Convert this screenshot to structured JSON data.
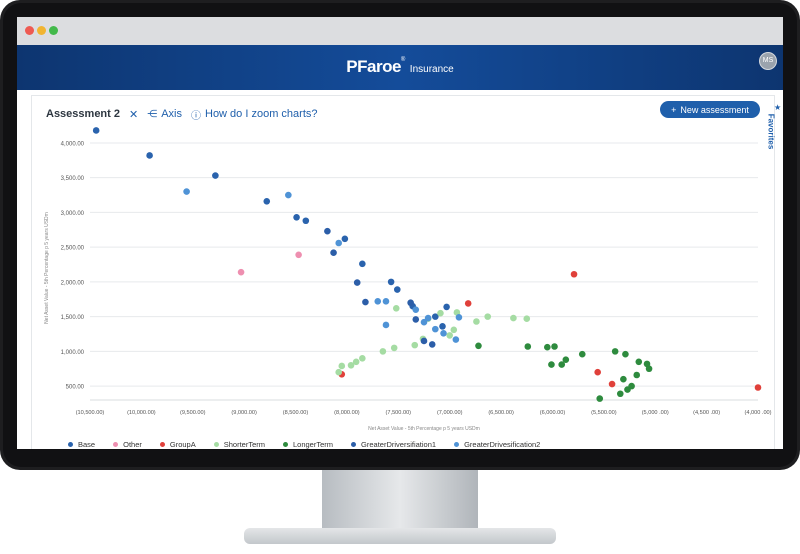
{
  "app": {
    "brand": "PFaroe",
    "brand_reg": "®",
    "brand_sub": "Insurance",
    "user_initials": "MS"
  },
  "toolbar": {
    "title": "Assessment 2",
    "close": "✕",
    "axis_label": "Axis",
    "help_label": "How do I zoom charts?",
    "new_button": "New assessment"
  },
  "sidebar": {
    "favorites_label": "Favorites"
  },
  "colors": {
    "accent": "#1f5fab",
    "header": "#144c9a"
  },
  "chart_data": {
    "type": "scatter",
    "xlabel": "Net Asset Value - 5th Percentage p 5 years USDm",
    "ylabel": "Net Asset Value - 5th Percentage p 5 years USDm",
    "xlim": [
      -10500,
      -4000
    ],
    "ylim": [
      300,
      4100
    ],
    "x_ticks": [
      -10500,
      -10000,
      -9500,
      -9000,
      -8500,
      -8000,
      -7500,
      -7000,
      -6500,
      -6000,
      -5500,
      -5000,
      -4500,
      -4000
    ],
    "x_tick_labels": [
      "(10,500.00)",
      "(10,000.00)",
      "(9,500.00)",
      "(9,000.00)",
      "(8,500.00)",
      "(8,000.00)",
      "(7,500.00)",
      "(7,000.00)",
      "(6,500.00)",
      "(6,000.00)",
      "(5,500.00)",
      "(5,000 .00)",
      "(4,500 .00)",
      "(4,000 .00)"
    ],
    "y_ticks": [
      500,
      1000,
      1500,
      2000,
      2500,
      3000,
      3500,
      4000
    ],
    "y_tick_labels": [
      "500.00",
      "1,000.00",
      "1,500.00",
      "2,000.00",
      "2,500.00",
      "3,000.00",
      "3,500.00",
      "4,000.00"
    ],
    "grid": true,
    "legend_position": "bottom",
    "series": [
      {
        "name": "Base",
        "color": "#2a63ad",
        "points": [
          [
            -10440,
            4180
          ],
          [
            -9920,
            3820
          ],
          [
            -9280,
            3530
          ],
          [
            -8780,
            3160
          ],
          [
            -8490,
            2930
          ],
          [
            -8400,
            2880
          ],
          [
            -8020,
            2620
          ],
          [
            -7850,
            2260
          ],
          [
            -7570,
            2000
          ],
          [
            -7510,
            1890
          ],
          [
            -7360,
            1650
          ],
          [
            -7140,
            1500
          ],
          [
            -7070,
            1360
          ],
          [
            -7030,
            1640
          ]
        ]
      },
      {
        "name": "Other",
        "color": "#ee8fb0",
        "points": [
          [
            -9030,
            2140
          ],
          [
            -8470,
            2390
          ]
        ]
      },
      {
        "name": "GroupA",
        "color": "#e0403a",
        "points": [
          [
            -8050,
            670
          ],
          [
            -6820,
            1690
          ],
          [
            -5790,
            2110
          ],
          [
            -5560,
            700
          ],
          [
            -5420,
            530
          ],
          [
            -4000,
            480
          ]
        ]
      },
      {
        "name": "ShorterTerm",
        "color": "#a5dca3",
        "points": [
          [
            -8080,
            700
          ],
          [
            -8050,
            790
          ],
          [
            -7960,
            800
          ],
          [
            -7910,
            850
          ],
          [
            -7850,
            900
          ],
          [
            -7650,
            1000
          ],
          [
            -7540,
            1050
          ],
          [
            -7520,
            1620
          ],
          [
            -7340,
            1090
          ],
          [
            -7260,
            1180
          ],
          [
            -7210,
            1470
          ],
          [
            -7090,
            1550
          ],
          [
            -7000,
            1230
          ],
          [
            -6960,
            1310
          ],
          [
            -6930,
            1560
          ],
          [
            -6740,
            1430
          ],
          [
            -6630,
            1500
          ],
          [
            -6380,
            1480
          ],
          [
            -6250,
            1470
          ]
        ]
      },
      {
        "name": "LongerTerm",
        "color": "#2e8b3e",
        "points": [
          [
            -6720,
            1080
          ],
          [
            -6240,
            1070
          ],
          [
            -6050,
            1060
          ],
          [
            -6010,
            810
          ],
          [
            -5980,
            1070
          ],
          [
            -5910,
            810
          ],
          [
            -5870,
            880
          ],
          [
            -5710,
            960
          ],
          [
            -5540,
            320
          ],
          [
            -5390,
            1000
          ],
          [
            -5340,
            390
          ],
          [
            -5310,
            600
          ],
          [
            -5290,
            960
          ],
          [
            -5270,
            450
          ],
          [
            -5230,
            500
          ],
          [
            -5180,
            660
          ],
          [
            -5160,
            850
          ],
          [
            -5080,
            820
          ],
          [
            -5060,
            750
          ]
        ]
      },
      {
        "name": "GreaterDriversifiation1",
        "color": "#2c5ea8",
        "points": [
          [
            -8190,
            2730
          ],
          [
            -8130,
            2420
          ],
          [
            -7900,
            1990
          ],
          [
            -7820,
            1710
          ],
          [
            -7380,
            1700
          ],
          [
            -7330,
            1460
          ],
          [
            -7250,
            1150
          ],
          [
            -7170,
            1100
          ]
        ]
      },
      {
        "name": "GreaterDrivesification2",
        "color": "#4f93d6",
        "points": [
          [
            -9560,
            3300
          ],
          [
            -8570,
            3250
          ],
          [
            -8080,
            2560
          ],
          [
            -7700,
            1720
          ],
          [
            -7620,
            1380
          ],
          [
            -7620,
            1720
          ],
          [
            -7330,
            1600
          ],
          [
            -7250,
            1420
          ],
          [
            -7210,
            1480
          ],
          [
            -7140,
            1320
          ],
          [
            -7060,
            1260
          ],
          [
            -6940,
            1170
          ],
          [
            -6910,
            1490
          ]
        ]
      }
    ]
  }
}
